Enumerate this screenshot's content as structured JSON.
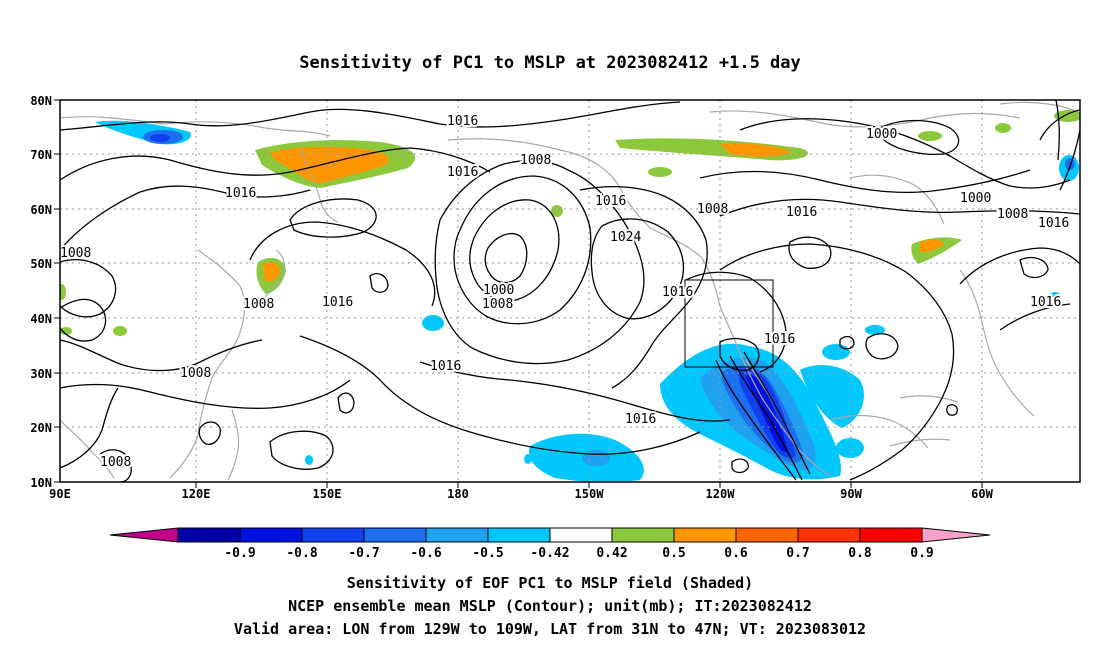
{
  "title": "Sensitivity of PC1 to MSLP at 2023082412 +1.5 day",
  "lat_labels": [
    "80N",
    "70N",
    "60N",
    "50N",
    "40N",
    "30N",
    "20N",
    "10N"
  ],
  "lon_labels": [
    "90E",
    "120E",
    "150E",
    "180",
    "150W",
    "120W",
    "90W",
    "60W"
  ],
  "contour_labels": [
    "1016",
    "1016",
    "1016",
    "1016",
    "1016",
    "1016",
    "1016",
    "1016",
    "1016",
    "1016",
    "1016",
    "1016",
    "1008",
    "1008",
    "1008",
    "1008",
    "1008",
    "1008",
    "1008",
    "1008",
    "1000",
    "1000",
    "1000",
    "1024"
  ],
  "colorbar": {
    "colors": [
      "#c0008c",
      "#0000a8",
      "#0010e0",
      "#1040f0",
      "#1c70f0",
      "#20a0f0",
      "#00c8ff",
      "#ffffff",
      "#8cc83c",
      "#ff9600",
      "#ff6400",
      "#ff3200",
      "#ff0000",
      "#f8a0c8"
    ],
    "tick_labels": [
      "-0.9",
      "-0.8",
      "-0.7",
      "-0.6",
      "-0.5",
      "-0.42",
      "0.42",
      "0.5",
      "0.6",
      "0.7",
      "0.8",
      "0.9"
    ]
  },
  "caption": {
    "line1": "Sensitivity of EOF PC1 to MSLP field (Shaded)",
    "line2": "NCEP ensemble mean MSLP (Contour); unit(mb); IT:2023082412",
    "line3": "Valid area: LON from 129W to 109W, LAT from 31N to 47N; VT: 2023083012"
  }
}
